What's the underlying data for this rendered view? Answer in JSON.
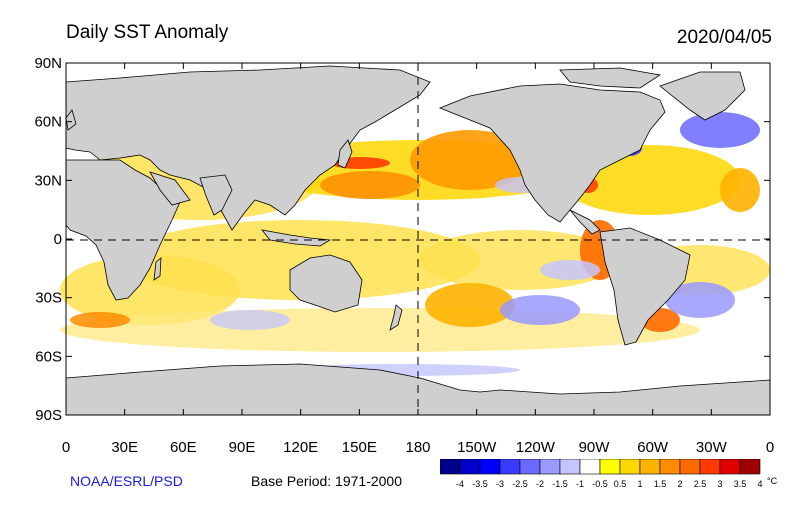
{
  "header": {
    "title": "Daily SST Anomaly",
    "date": "2020/04/05"
  },
  "map": {
    "projection": "equirectangular (0–360, centered on 180)",
    "background_ocean": "#ffffff",
    "land_color": "#cfcfcf",
    "lat_labels": [
      "90N",
      "60N",
      "30N",
      "0",
      "30S",
      "60S",
      "90S"
    ],
    "lon_labels": [
      "0",
      "30E",
      "60E",
      "90E",
      "120E",
      "150E",
      "180",
      "150W",
      "120W",
      "90W",
      "60W",
      "30W",
      "0"
    ],
    "reference_lines": "dashed equator and dashed 180° meridian"
  },
  "colorbar": {
    "colors": [
      "#00008b",
      "#0000cd",
      "#0000ff",
      "#3a3aff",
      "#6a6aff",
      "#9999ff",
      "#c4c4ff",
      "#ffffff",
      "#ffff00",
      "#ffd700",
      "#ffb300",
      "#ff8c00",
      "#ff6a00",
      "#ff3a00",
      "#e00000",
      "#a00000"
    ],
    "labels": [
      "-4",
      "-3.5",
      "-3",
      "-2.5",
      "-2",
      "-1.5",
      "-1",
      "-0.5",
      "0.5",
      "1",
      "1.5",
      "2",
      "2.5",
      "3",
      "3.5",
      "4"
    ],
    "unit": "°C"
  },
  "footer": {
    "credit": "NOAA/ESRL/PSD",
    "base_period": "Base Period: 1971-2000"
  }
}
